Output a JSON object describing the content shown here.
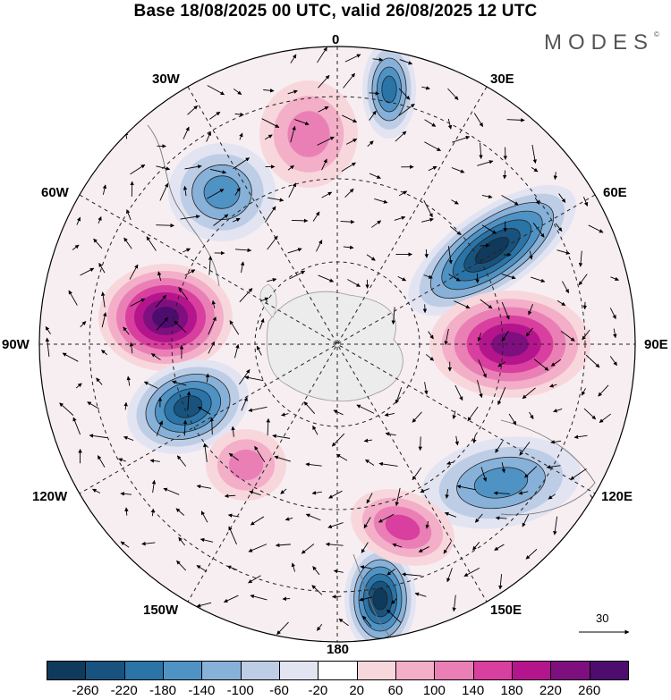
{
  "title": "Base 18/08/2025 00 UTC, valid 26/08/2025 12 UTC",
  "logo": "MODES",
  "logo_mark": "©",
  "meridians": {
    "m0": "0",
    "m30e": "30E",
    "m60e": "60E",
    "m90e": "90E",
    "m120e": "120E",
    "m150e": "150E",
    "m180": "180",
    "m150w": "150W",
    "m120w": "120W",
    "m90w": "90W",
    "m60w": "60W",
    "m30w": "30W"
  },
  "reference_vector": "30",
  "colorbar": {
    "ticks": [
      "-260",
      "-220",
      "-180",
      "-140",
      "-100",
      "-60",
      "-20",
      "20",
      "60",
      "100",
      "140",
      "180",
      "220",
      "260"
    ],
    "colors": [
      "#0f3a5c",
      "#17537e",
      "#2a74a8",
      "#4f93c5",
      "#87b1d8",
      "#bdcde6",
      "#e3e4f1",
      "#ffffff",
      "#f8d7dc",
      "#f3aec8",
      "#ea7fb6",
      "#d93f9f",
      "#b4158c",
      "#7e0f7f",
      "#4e0c6e"
    ]
  },
  "anomalies": [
    {
      "name": "anomaly-low-north-atlantic",
      "v": -180
    },
    {
      "name": "anomaly-low-west-atlantic",
      "v": -140
    },
    {
      "name": "anomaly-high-north",
      "v": 100
    },
    {
      "name": "anomaly-low-east",
      "v": -260
    },
    {
      "name": "anomaly-high-east",
      "v": 220
    },
    {
      "name": "anomaly-high-west",
      "v": 260
    },
    {
      "name": "anomaly-low-southwest",
      "v": -220
    },
    {
      "name": "anomaly-low-south",
      "v": -260
    },
    {
      "name": "anomaly-low-southeast",
      "v": -140
    },
    {
      "name": "anomaly-high-southeast",
      "v": 140
    },
    {
      "name": "anomaly-high-southwest",
      "v": 100
    }
  ]
}
